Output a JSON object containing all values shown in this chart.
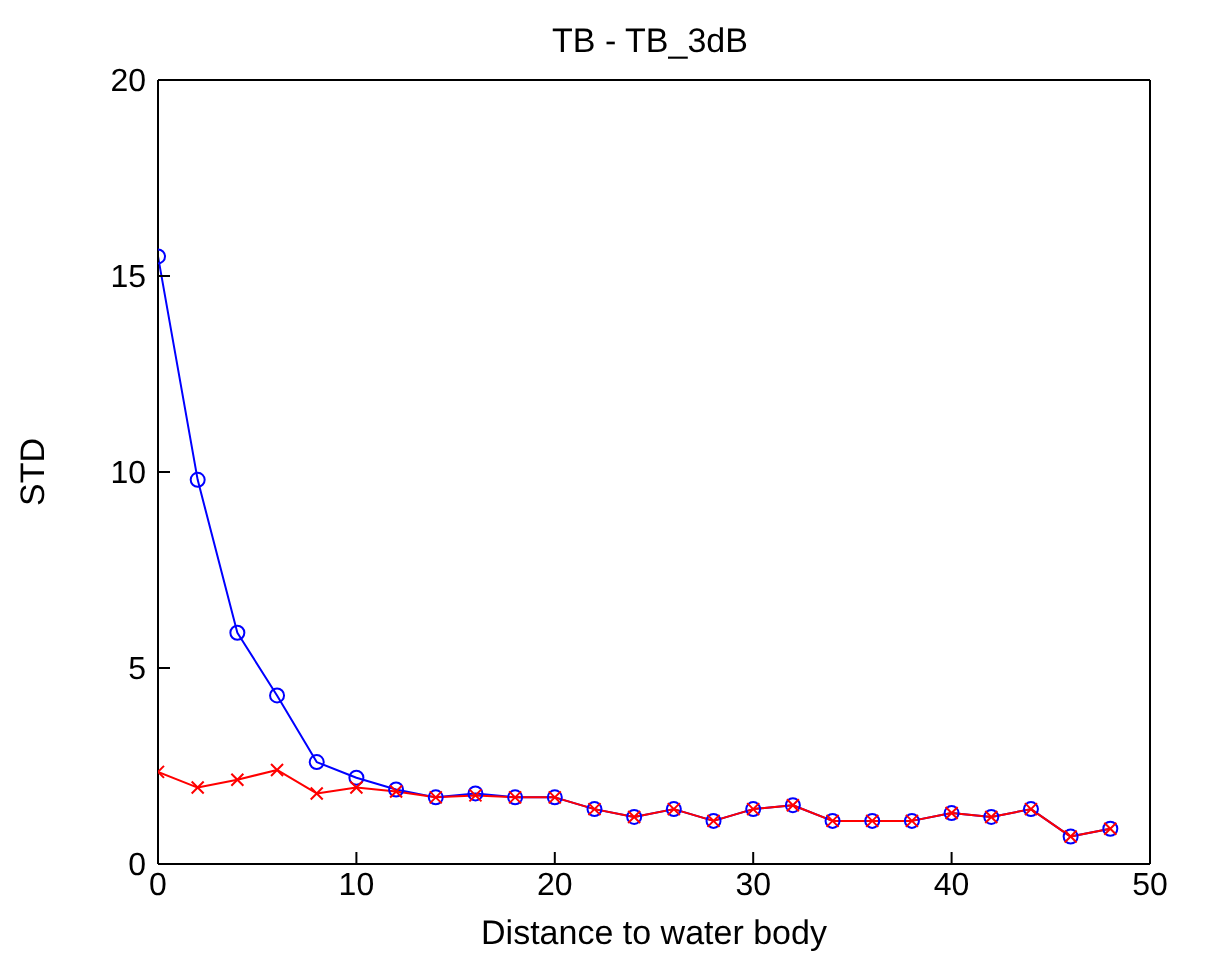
{
  "chart_data": {
    "type": "line",
    "title": "TB - TB_3dB",
    "xlabel": "Distance to water body",
    "ylabel": "STD",
    "x": [
      0,
      2,
      4,
      6,
      8,
      10,
      12,
      14,
      16,
      18,
      20,
      22,
      24,
      26,
      28,
      30,
      32,
      34,
      36,
      38,
      40,
      42,
      44,
      46,
      48
    ],
    "series": [
      {
        "color": "#0000ff",
        "marker": "circle",
        "values": [
          15.5,
          9.8,
          5.9,
          4.3,
          2.6,
          2.2,
          1.9,
          1.7,
          1.8,
          1.7,
          1.7,
          1.4,
          1.2,
          1.4,
          1.1,
          1.4,
          1.5,
          1.1,
          1.1,
          1.1,
          1.3,
          1.2,
          1.4,
          0.7,
          0.9
        ]
      },
      {
        "color": "#ff0000",
        "marker": "cross",
        "values": [
          2.35,
          1.95,
          2.15,
          2.4,
          1.8,
          1.95,
          1.85,
          1.7,
          1.75,
          1.7,
          1.7,
          1.4,
          1.2,
          1.4,
          1.1,
          1.4,
          1.5,
          1.1,
          1.1,
          1.1,
          1.3,
          1.2,
          1.4,
          0.7,
          0.9
        ]
      }
    ],
    "xlim": [
      0,
      50
    ],
    "xticks": [
      0,
      10,
      20,
      30,
      40,
      50
    ],
    "ylim": [
      0,
      20
    ],
    "yticks": [
      0,
      5,
      10,
      15,
      20
    ],
    "grid": false,
    "legend": false
  }
}
